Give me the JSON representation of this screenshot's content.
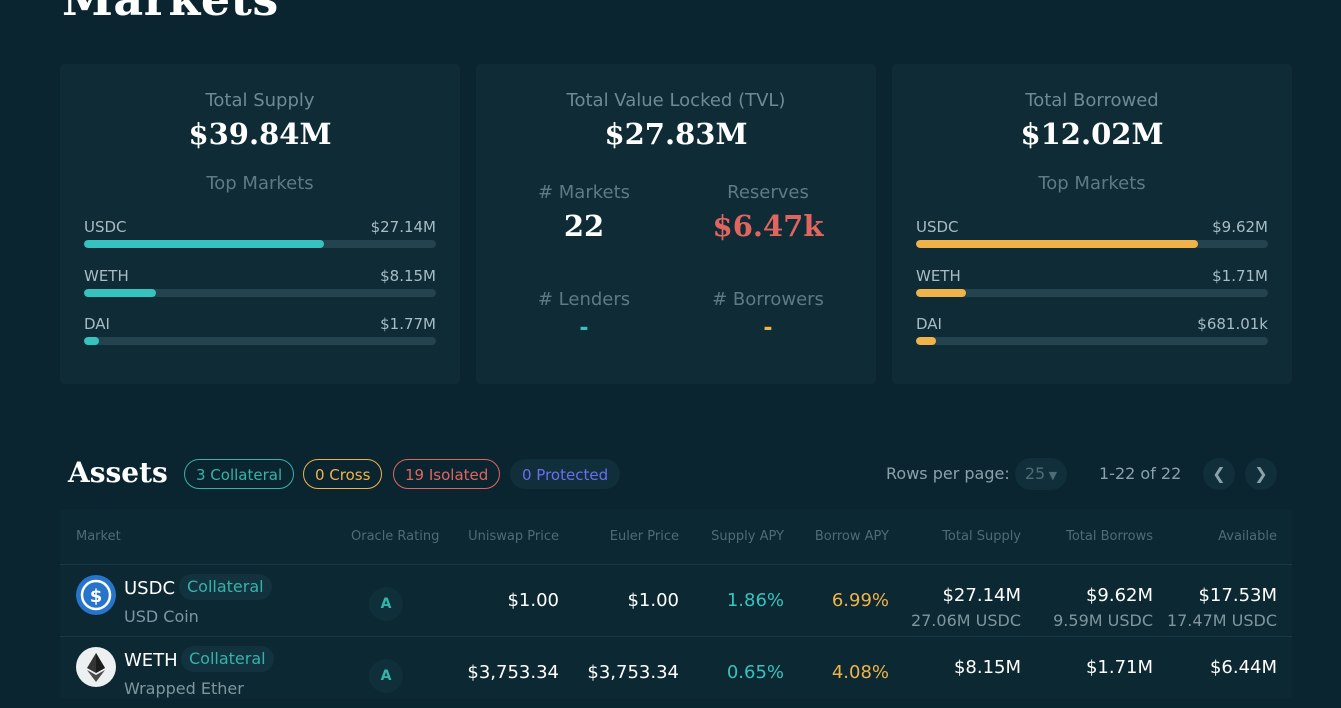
{
  "page": {
    "title": "Markets"
  },
  "supply_card": {
    "label": "Total Supply",
    "value": "$39.84M",
    "top_markets_label": "Top Markets",
    "markets": [
      {
        "name": "USDC",
        "amount": "$27.14M",
        "share": 0.681
      },
      {
        "name": "WETH",
        "amount": "$8.15M",
        "share": 0.205
      },
      {
        "name": "DAI",
        "amount": "$1.77M",
        "share": 0.044
      }
    ],
    "bar_color": "#36c3c0"
  },
  "tvl_card": {
    "label": "Total Value Locked (TVL)",
    "value": "$27.83M",
    "markets_label": "# Markets",
    "markets_value": "22",
    "reserves_label": "Reserves",
    "reserves_value": "$6.47k",
    "lenders_label": "# Lenders",
    "lenders_value": "-",
    "borrowers_label": "# Borrowers",
    "borrowers_value": "-",
    "reserves_color": "#e0655f",
    "lenders_color": "#36c3c0",
    "borrowers_color": "#f0b34a"
  },
  "borrow_card": {
    "label": "Total Borrowed",
    "value": "$12.02M",
    "top_markets_label": "Top Markets",
    "markets": [
      {
        "name": "USDC",
        "amount": "$9.62M",
        "share": 0.8
      },
      {
        "name": "WETH",
        "amount": "$1.71M",
        "share": 0.142
      },
      {
        "name": "DAI",
        "amount": "$681.01k",
        "share": 0.057
      }
    ],
    "bar_color": "#f0b34a"
  },
  "assets": {
    "title": "Assets",
    "filters": [
      {
        "label": "3 Collateral",
        "color": "#36b3a8"
      },
      {
        "label": "0 Cross",
        "color": "#f0b34a"
      },
      {
        "label": "19 Isolated",
        "color": "#e0655f"
      },
      {
        "label": "0 Protected",
        "color": "#6a6ef0"
      }
    ],
    "rows_per_page_label": "Rows per page:",
    "rows_per_page_value": "25",
    "range_label": "1-22 of 22",
    "prev_icon": "chevron-left-icon",
    "next_icon": "chevron-right-icon"
  },
  "table": {
    "headers": [
      "Market",
      "Oracle Rating",
      "Uniswap Price",
      "Euler Price",
      "Supply APY",
      "Borrow APY",
      "Total Supply",
      "Total Borrows",
      "Available"
    ],
    "rows": [
      {
        "symbol": "USDC",
        "name": "USD Coin",
        "badge": "Collateral",
        "rating": "A",
        "uniswap_price": "$1.00",
        "euler_price": "$1.00",
        "supply_apy": "1.86%",
        "borrow_apy": "6.99%",
        "total_supply": "$27.14M",
        "total_supply_sub": "27.06M USDC",
        "total_borrows": "$9.62M",
        "total_borrows_sub": "9.59M USDC",
        "available": "$17.53M",
        "available_sub": "17.47M USDC",
        "icon": "usdc-icon"
      },
      {
        "symbol": "WETH",
        "name": "Wrapped Ether",
        "badge": "Collateral",
        "rating": "A",
        "uniswap_price": "$3,753.34",
        "euler_price": "$3,753.34",
        "supply_apy": "0.65%",
        "borrow_apy": "4.08%",
        "total_supply": "$8.15M",
        "total_supply_sub": "",
        "total_borrows": "$1.71M",
        "total_borrows_sub": "",
        "available": "$6.44M",
        "available_sub": "",
        "icon": "weth-icon"
      }
    ],
    "supply_apy_color": "#36c3c0",
    "borrow_apy_color": "#f0b34a"
  }
}
